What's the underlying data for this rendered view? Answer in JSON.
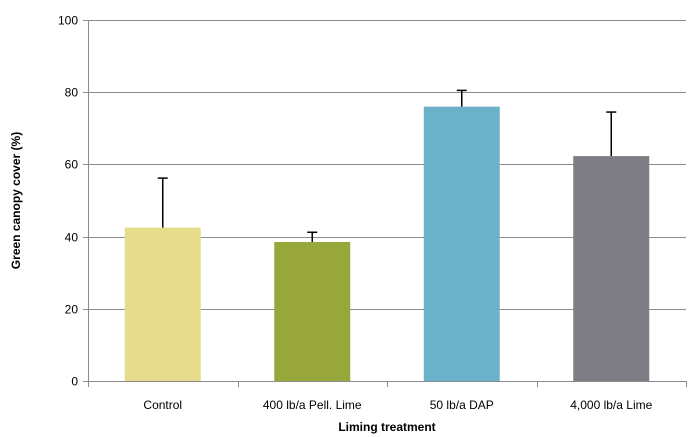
{
  "chart_data": {
    "type": "bar",
    "title": "",
    "xlabel": "Liming treatment",
    "ylabel": "Green canopy cover (%)",
    "categories": [
      "Control",
      "400 lb/a Pell. Lime",
      "50 lb/a DAP",
      "4,000 lb/a Lime"
    ],
    "values": [
      42.5,
      38.5,
      76,
      62.3
    ],
    "error_upper": [
      56.2,
      41.2,
      80.5,
      74.5
    ],
    "bar_colors": [
      "#e6dc8c",
      "#97a73a",
      "#6ab1c9",
      "#7f7e84"
    ],
    "error_bar_color": "#000000",
    "ylim": [
      0,
      100
    ],
    "yticks": [
      "0",
      "20",
      "40",
      "60",
      "80",
      "100"
    ],
    "grid": true,
    "gridline_color": "#8c8c8c",
    "legend": "none"
  }
}
